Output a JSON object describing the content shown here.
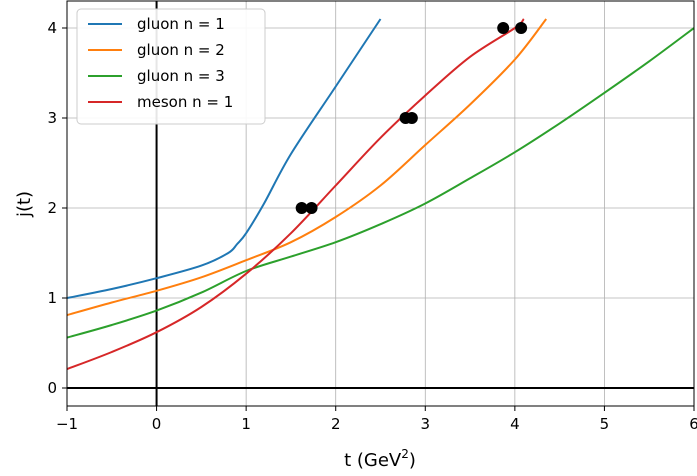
{
  "chart_data": {
    "type": "line",
    "title": "",
    "xlabel": "t (GeV",
    "xlabel_sup": "2",
    "xlabel_end": ")",
    "ylabel": "j(t)",
    "xlim": [
      -1,
      6
    ],
    "ylim": [
      -0.2,
      4.3
    ],
    "xticks": [
      -1,
      0,
      1,
      2,
      3,
      4,
      5,
      6
    ],
    "xtick_labels": [
      "−1",
      "0",
      "1",
      "2",
      "3",
      "4",
      "5",
      "6"
    ],
    "yticks": [
      0,
      1,
      2,
      3,
      4
    ],
    "ytick_labels": [
      "0",
      "1",
      "2",
      "3",
      "4"
    ],
    "grid": true,
    "legend_position": "top-left",
    "series": [
      {
        "name": "gluon n = 1",
        "color": "#1f77b4",
        "x": [
          -1.0,
          -0.5,
          0.0,
          0.5,
          0.8,
          0.9,
          1.0,
          1.2,
          1.5,
          2.0,
          2.5
        ],
        "y": [
          1.0,
          1.1,
          1.22,
          1.36,
          1.5,
          1.6,
          1.72,
          2.05,
          2.6,
          3.35,
          4.1
        ]
      },
      {
        "name": "gluon n = 2",
        "color": "#ff7f0e",
        "x": [
          -1.0,
          -0.5,
          0.0,
          0.5,
          1.0,
          1.5,
          2.0,
          2.5,
          3.0,
          3.5,
          4.0,
          4.35
        ],
        "y": [
          0.81,
          0.95,
          1.08,
          1.23,
          1.42,
          1.62,
          1.9,
          2.25,
          2.7,
          3.15,
          3.65,
          4.1
        ]
      },
      {
        "name": "gluon n = 3",
        "color": "#2ca02c",
        "x": [
          -1.0,
          -0.5,
          0.0,
          0.5,
          1.0,
          1.5,
          2.0,
          2.5,
          3.0,
          3.5,
          4.0,
          4.5,
          5.0,
          5.5,
          6.0
        ],
        "y": [
          0.56,
          0.7,
          0.86,
          1.06,
          1.3,
          1.46,
          1.62,
          1.82,
          2.05,
          2.33,
          2.62,
          2.94,
          3.28,
          3.63,
          4.0
        ]
      },
      {
        "name": "meson n = 1",
        "color": "#d62728",
        "x": [
          -1.0,
          -0.5,
          0.0,
          0.5,
          1.0,
          1.5,
          2.0,
          2.5,
          3.0,
          3.5,
          4.0,
          4.1
        ],
        "y": [
          0.21,
          0.4,
          0.62,
          0.9,
          1.27,
          1.72,
          2.25,
          2.78,
          3.25,
          3.68,
          4.0,
          4.1
        ]
      }
    ],
    "points": {
      "color": "#000000",
      "x": [
        1.62,
        1.73,
        2.78,
        2.85,
        3.87,
        4.07
      ],
      "y": [
        2,
        2,
        3,
        3,
        4,
        4
      ]
    }
  }
}
